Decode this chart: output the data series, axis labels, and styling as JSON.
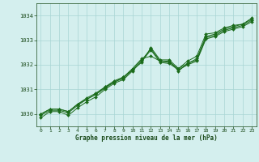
{
  "title": "Graphe pression niveau de la mer (hPa)",
  "bg_color": "#d4efee",
  "grid_color": "#a8d5d4",
  "line_color": "#1a6b1a",
  "marker_color": "#1a6b1a",
  "xlim": [
    -0.5,
    23.5
  ],
  "ylim": [
    1029.5,
    1034.5
  ],
  "yticks": [
    1030,
    1031,
    1032,
    1033,
    1034
  ],
  "xticks": [
    0,
    1,
    2,
    3,
    4,
    5,
    6,
    7,
    8,
    9,
    10,
    11,
    12,
    13,
    14,
    15,
    16,
    17,
    18,
    19,
    20,
    21,
    22,
    23
  ],
  "series": [
    [
      1030.0,
      1030.2,
      1030.2,
      1030.1,
      1030.4,
      1030.6,
      1030.8,
      1031.1,
      1031.3,
      1031.5,
      1031.8,
      1032.1,
      1032.7,
      1032.2,
      1032.2,
      1031.85,
      1032.15,
      1032.35,
      1033.25,
      1033.3,
      1033.5,
      1033.6,
      1033.65,
      1033.9
    ],
    [
      1030.0,
      1030.2,
      1030.2,
      1030.1,
      1030.4,
      1030.65,
      1030.85,
      1031.1,
      1031.35,
      1031.5,
      1031.85,
      1032.25,
      1032.35,
      1032.15,
      1032.15,
      1031.75,
      1032.05,
      1032.25,
      1033.15,
      1033.25,
      1033.45,
      1033.55,
      1033.65,
      1033.85
    ],
    [
      1029.95,
      1030.15,
      1030.15,
      1030.05,
      1030.35,
      1030.6,
      1030.8,
      1031.05,
      1031.3,
      1031.45,
      1031.8,
      1032.2,
      1032.65,
      1032.15,
      1032.1,
      1031.85,
      1032.05,
      1032.2,
      1033.1,
      1033.2,
      1033.4,
      1033.5,
      1033.6,
      1033.8
    ],
    [
      1029.85,
      1030.1,
      1030.1,
      1029.95,
      1030.25,
      1030.5,
      1030.7,
      1031.0,
      1031.25,
      1031.4,
      1031.75,
      1032.15,
      1032.6,
      1032.1,
      1032.05,
      1031.8,
      1032.0,
      1032.15,
      1033.05,
      1033.15,
      1033.35,
      1033.45,
      1033.55,
      1033.75
    ]
  ]
}
